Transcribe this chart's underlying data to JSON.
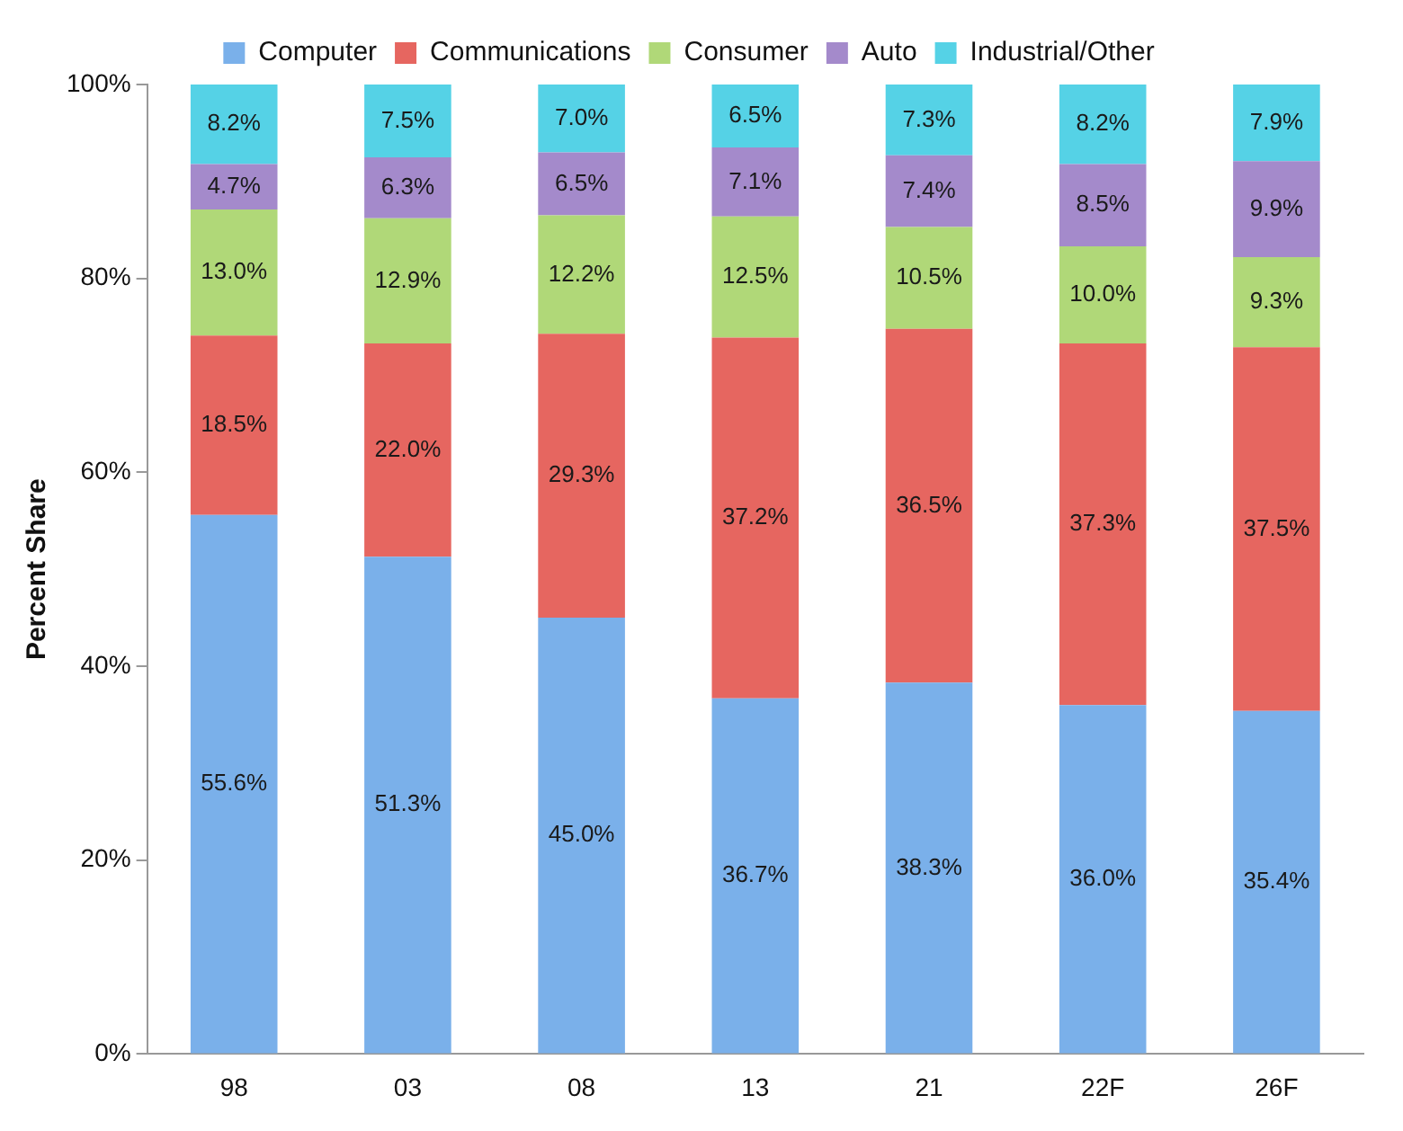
{
  "chart_data": {
    "type": "bar",
    "stacked": true,
    "ylabel": "Percent Share",
    "legend": "top",
    "grid": false,
    "categories": [
      "98",
      "03",
      "08",
      "13",
      "21",
      "22F",
      "26F"
    ],
    "ylim": [
      0,
      100
    ],
    "yticks": [
      {
        "value": 0,
        "label": "0%"
      },
      {
        "value": 20,
        "label": "20%"
      },
      {
        "value": 40,
        "label": "40%"
      },
      {
        "value": 60,
        "label": "60%"
      },
      {
        "value": 80,
        "label": "80%"
      },
      {
        "value": 100,
        "label": "100%"
      }
    ],
    "series": [
      {
        "name": "Computer",
        "color": "#7ab0ea",
        "values": [
          55.6,
          51.3,
          45.0,
          36.7,
          38.3,
          36.0,
          35.4
        ],
        "value_labels": [
          "55.6%",
          "51.3%",
          "45.0%",
          "36.7%",
          "38.3%",
          "36.0%",
          "35.4%"
        ]
      },
      {
        "name": "Communications",
        "color": "#e66660",
        "values": [
          18.5,
          22.0,
          29.3,
          37.2,
          36.5,
          37.3,
          37.5
        ],
        "value_labels": [
          "18.5%",
          "22.0%",
          "29.3%",
          "37.2%",
          "36.5%",
          "37.3%",
          "37.5%"
        ]
      },
      {
        "name": "Consumer",
        "color": "#b0d878",
        "values": [
          13.0,
          12.9,
          12.2,
          12.5,
          10.5,
          10.0,
          9.3
        ],
        "value_labels": [
          "13.0%",
          "12.9%",
          "12.2%",
          "12.5%",
          "10.5%",
          "10.0%",
          "9.3%"
        ]
      },
      {
        "name": "Auto",
        "color": "#a48acb",
        "values": [
          4.7,
          6.3,
          6.5,
          7.1,
          7.4,
          8.5,
          9.9
        ],
        "value_labels": [
          "4.7%",
          "6.3%",
          "6.5%",
          "7.1%",
          "7.4%",
          "8.5%",
          "9.9%"
        ]
      },
      {
        "name": "Industrial/Other",
        "color": "#55d2e6",
        "values": [
          8.2,
          7.5,
          7.0,
          6.5,
          7.3,
          8.2,
          7.9
        ],
        "value_labels": [
          "8.2%",
          "7.5%",
          "7.0%",
          "6.5%",
          "7.3%",
          "8.2%",
          "7.9%"
        ]
      }
    ]
  }
}
